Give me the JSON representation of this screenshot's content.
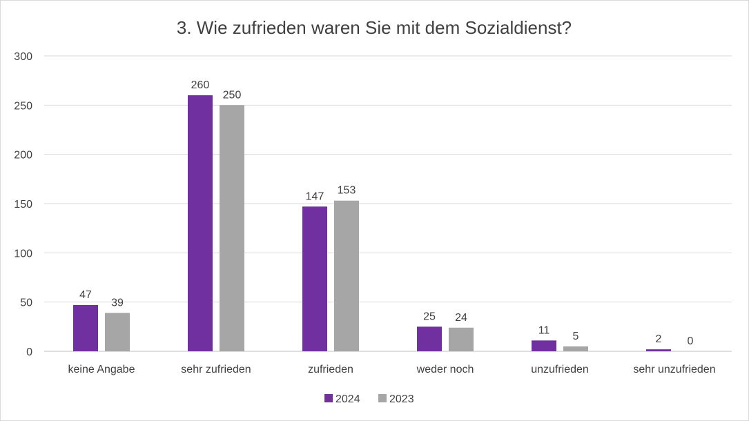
{
  "chart_data": {
    "type": "bar",
    "title": "3. Wie zufrieden waren Sie mit dem Sozialdienst?",
    "categories": [
      "keine Angabe",
      "sehr zufrieden",
      "zufrieden",
      "weder noch",
      "unzufrieden",
      "sehr unzufrieden"
    ],
    "series": [
      {
        "name": "2024",
        "color": "#7030a0",
        "values": [
          47,
          260,
          147,
          25,
          11,
          2
        ]
      },
      {
        "name": "2023",
        "color": "#a6a6a6",
        "values": [
          39,
          250,
          153,
          24,
          5,
          0
        ]
      }
    ],
    "ylim": [
      0,
      300
    ],
    "yticks": [
      0,
      50,
      100,
      150,
      200,
      250,
      300
    ],
    "xlabel": "",
    "ylabel": "",
    "grid": true,
    "legend": "bottom"
  }
}
